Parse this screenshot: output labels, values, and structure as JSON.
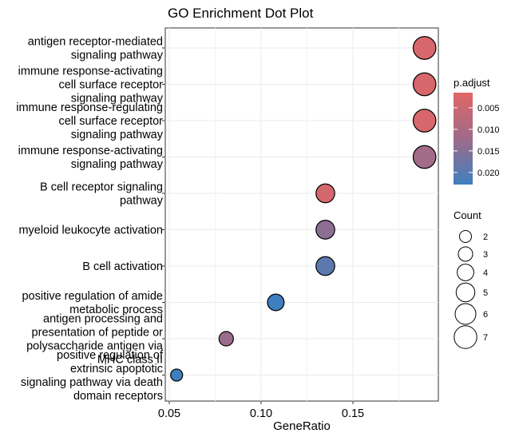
{
  "chart_data": {
    "type": "scatter",
    "title": "GO Enrichment Dot Plot",
    "xlabel": "GeneRatio",
    "ylabel": "",
    "xlim": [
      0.048,
      0.195
    ],
    "xticks": [
      0.05,
      0.1,
      0.15
    ],
    "xtick_labels": [
      "0.05",
      "0.10",
      "0.15"
    ],
    "grid": true,
    "points": [
      {
        "term": "antigen receptor-mediated\nsignaling pathway",
        "gene_ratio": 0.189,
        "count": 7,
        "p_adjust": 0.003
      },
      {
        "term": "immune response-activating\ncell surface receptor\nsignaling pathway",
        "gene_ratio": 0.189,
        "count": 7,
        "p_adjust": 0.003
      },
      {
        "term": "immune response-regulating\ncell surface receptor\nsignaling pathway",
        "gene_ratio": 0.189,
        "count": 7,
        "p_adjust": 0.003
      },
      {
        "term": "immune response-activating\nsignaling pathway",
        "gene_ratio": 0.189,
        "count": 7,
        "p_adjust": 0.0115
      },
      {
        "term": "B cell receptor signaling\npathway",
        "gene_ratio": 0.135,
        "count": 5,
        "p_adjust": 0.0035
      },
      {
        "term": "myeloid leukocyte activation",
        "gene_ratio": 0.135,
        "count": 5,
        "p_adjust": 0.014
      },
      {
        "term": "B cell activation",
        "gene_ratio": 0.135,
        "count": 5,
        "p_adjust": 0.0195
      },
      {
        "term": "positive regulation of amide\nmetabolic process",
        "gene_ratio": 0.108,
        "count": 4,
        "p_adjust": 0.0228
      },
      {
        "term": "antigen processing and\npresentation of peptide or\npolysaccharide antigen via\nMHC class II",
        "gene_ratio": 0.081,
        "count": 3,
        "p_adjust": 0.0125
      },
      {
        "term": "positive regulation of\nextrinsic apoptotic\nsignaling pathway via death\ndomain receptors",
        "gene_ratio": 0.054,
        "count": 2,
        "p_adjust": 0.0228
      }
    ],
    "color_legend": {
      "title": "p.adjust",
      "ticks": [
        0.005,
        0.01,
        0.015,
        0.02
      ],
      "tick_labels": [
        "0.005",
        "0.010",
        "0.015",
        "0.020"
      ],
      "range": [
        0.0015,
        0.0228
      ],
      "low_color": "#E06666",
      "high_color": "#3F7FBF"
    },
    "size_legend": {
      "title": "Count",
      "values": [
        2,
        3,
        4,
        5,
        6,
        7
      ],
      "labels": [
        "2",
        "3",
        "4",
        "5",
        "6",
        "7"
      ]
    }
  }
}
